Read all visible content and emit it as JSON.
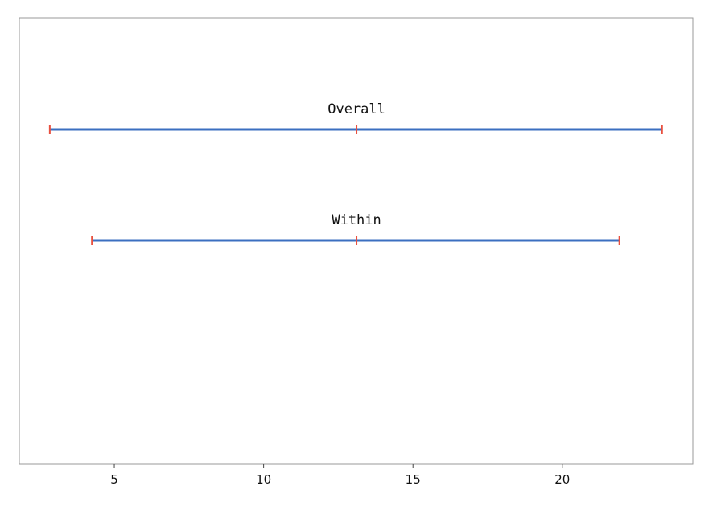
{
  "chart_data": {
    "type": "interval",
    "categories": [
      "Overall",
      "Within"
    ],
    "lower": [
      2.84,
      4.25
    ],
    "center": [
      13.11,
      13.11
    ],
    "upper": [
      23.34,
      21.91
    ],
    "line_color": "#3b6fc0",
    "cap_color": "#e8503f",
    "xlim": [
      1.82,
      24.37
    ],
    "xticks": [
      5,
      10,
      15,
      20
    ]
  }
}
